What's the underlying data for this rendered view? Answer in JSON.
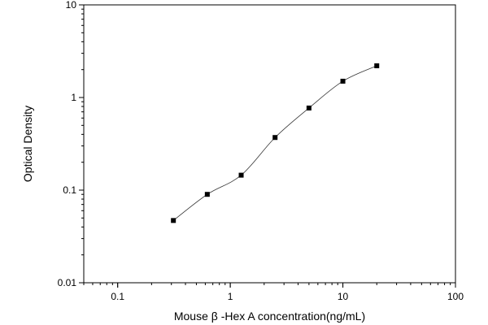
{
  "chart_data": {
    "type": "scatter",
    "title": "",
    "xlabel": "Mouse β -Hex A concentration(ng/mL)",
    "ylabel": "Optical Density",
    "x_scale": "log",
    "y_scale": "log",
    "xlim": [
      0.05,
      100
    ],
    "ylim": [
      0.01,
      10
    ],
    "x_ticks": [
      {
        "value": 0.1,
        "label": "0.1"
      },
      {
        "value": 1,
        "label": "1"
      },
      {
        "value": 10,
        "label": "10"
      },
      {
        "value": 100,
        "label": "100"
      }
    ],
    "y_ticks": [
      {
        "value": 0.01,
        "label": "0.01"
      },
      {
        "value": 0.1,
        "label": "0.1"
      },
      {
        "value": 1,
        "label": "1"
      },
      {
        "value": 10,
        "label": "10"
      }
    ],
    "grid": false,
    "series": [
      {
        "marker": "square",
        "color": "#000000",
        "x": [
          0.3125,
          0.625,
          1.25,
          2.5,
          5,
          10,
          20
        ],
        "y": [
          0.047,
          0.09,
          0.145,
          0.37,
          0.77,
          1.5,
          2.2
        ]
      }
    ],
    "fit_curve": true
  }
}
